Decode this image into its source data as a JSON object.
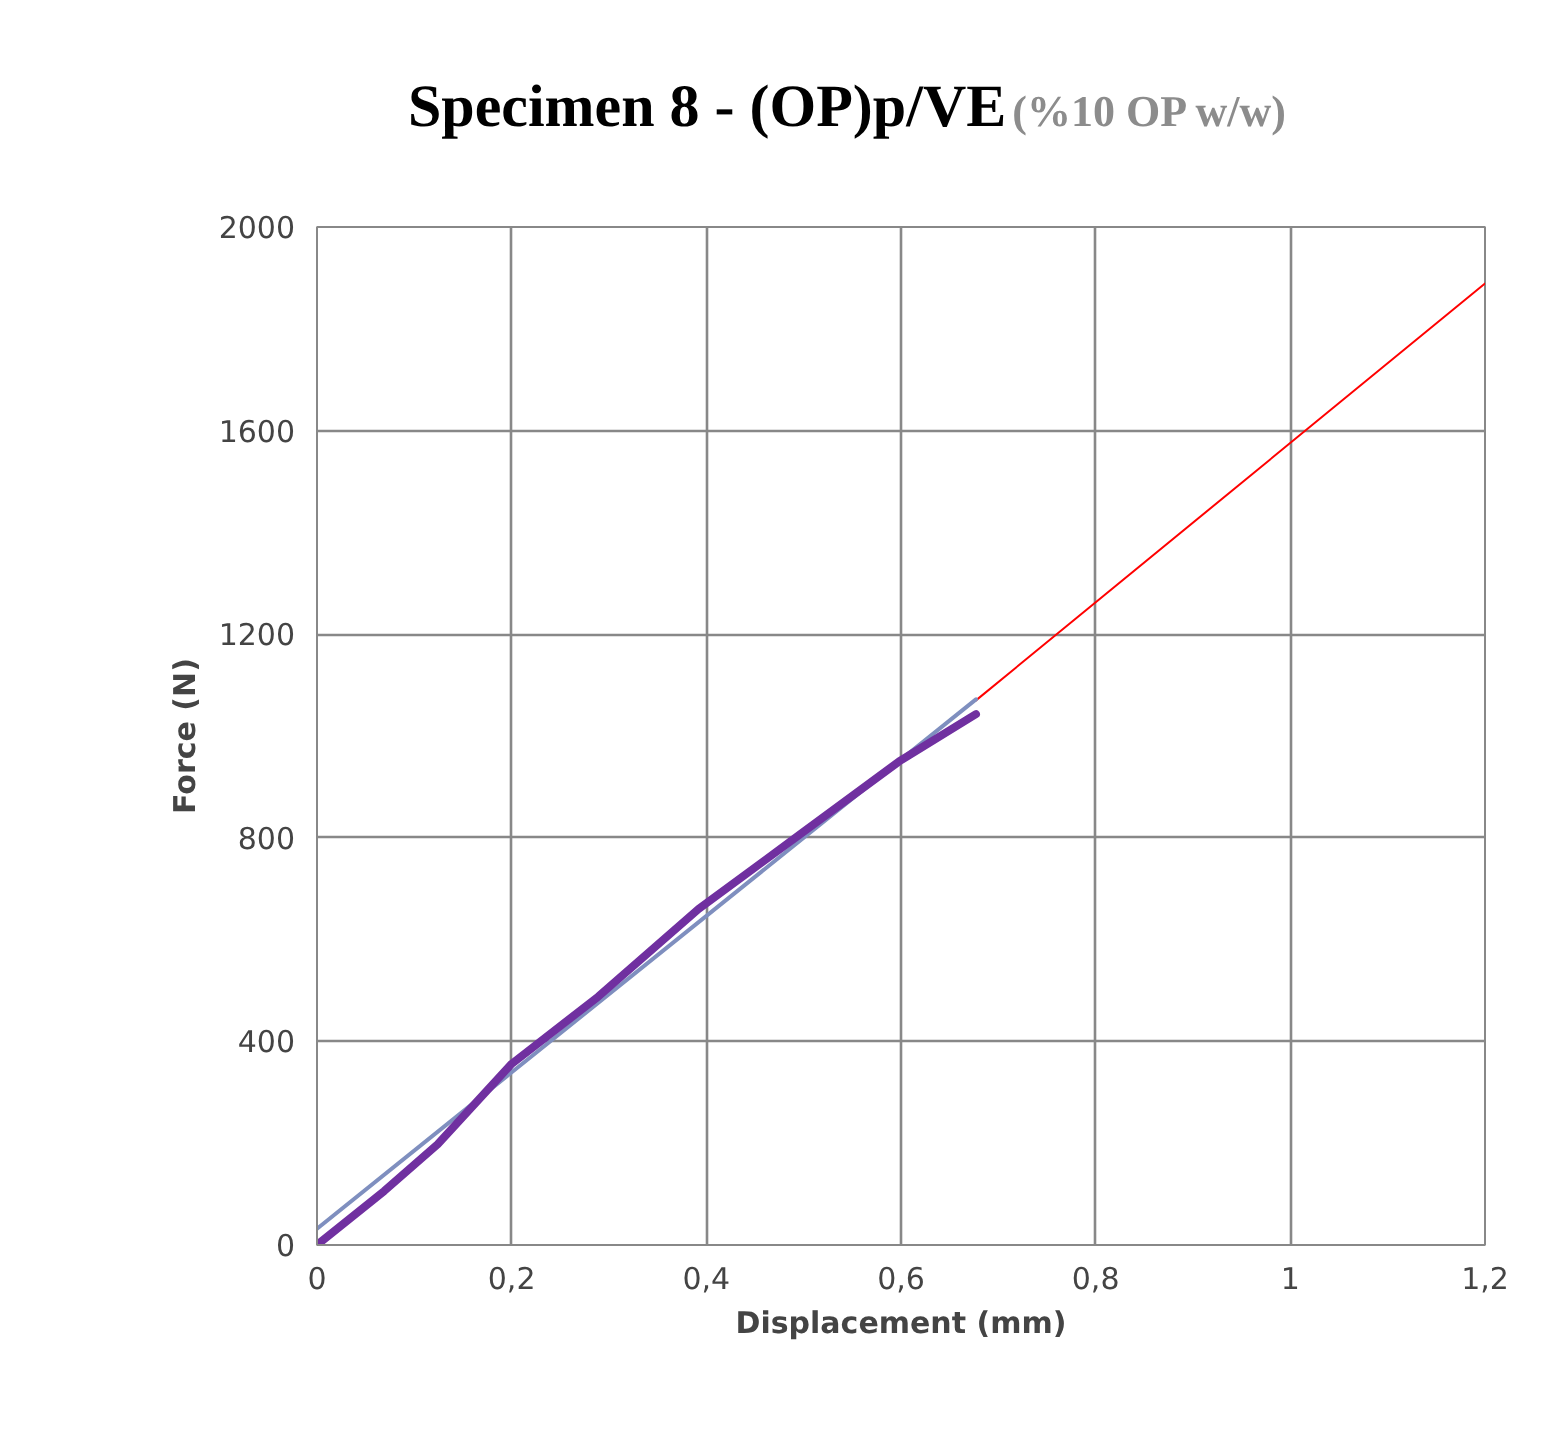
{
  "chart_data": {
    "type": "line",
    "title": "Specimen 8 - (OP)p/VE",
    "subtitle": "(%10 OP w/w)",
    "xlabel": "Displacement (mm)",
    "ylabel": "Force (N)",
    "xlim": [
      0,
      1.2
    ],
    "ylim": [
      0,
      2000
    ],
    "xticks": [
      0,
      {
        "value": 0.2,
        "label": "0,2"
      },
      {
        "value": 0.4,
        "label": "0,4"
      },
      {
        "value": 0.6,
        "label": "0,6"
      },
      {
        "value": 0.8,
        "label": "0,8"
      },
      1,
      {
        "value": 1.2,
        "label": "1,2"
      }
    ],
    "yticks": [
      0,
      400,
      800,
      1200,
      1600,
      2000
    ],
    "grid": true,
    "series": [
      {
        "color": "#ff0000",
        "x": [
          0.677,
          1.2
        ],
        "values": [
          1070,
          1889
        ]
      },
      {
        "color": "#7f8fbf",
        "x": [
          0,
          0.677
        ],
        "values": [
          32,
          1072
        ]
      },
      {
        "color": "#7030a0",
        "x": [
          0,
          0.069,
          0.124,
          0.2,
          0.289,
          0.392,
          0.495,
          0.598,
          0.677
        ],
        "values": [
          0,
          106,
          198,
          356,
          488,
          660,
          805,
          950,
          1043
        ]
      }
    ]
  }
}
